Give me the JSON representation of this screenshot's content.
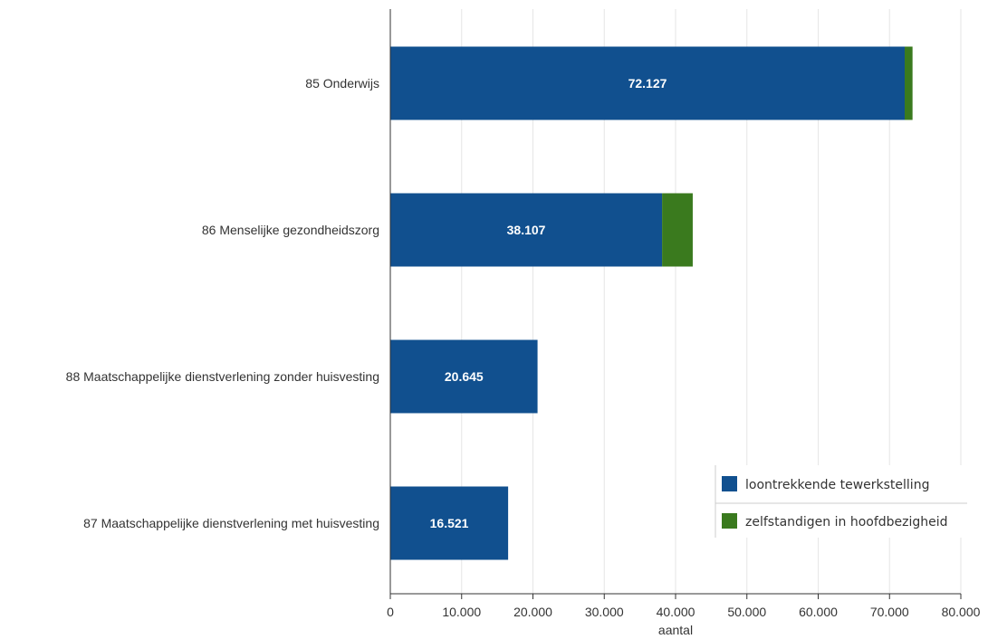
{
  "chart_data": {
    "type": "bar",
    "orientation": "horizontal",
    "stacked": true,
    "categories": [
      "85 Onderwijs",
      "86 Menselijke gezondheidszorg",
      "88 Maatschappelijke dienstverlening zonder huisvesting",
      "87 Maatschappelijke dienstverlening met huisvesting"
    ],
    "series": [
      {
        "name": "loontrekkende tewerkstelling",
        "color": "#11508f",
        "values": [
          72127,
          38107,
          20645,
          16521
        ],
        "labels": [
          "72.127",
          "38.107",
          "20.645",
          "16.521"
        ]
      },
      {
        "name": "zelfstandigen in hoofdbezigheid",
        "color": "#3a7a1e",
        "values": [
          1100,
          4300,
          0,
          0
        ]
      }
    ],
    "xlabel": "aantal",
    "xlim": [
      0,
      80000
    ],
    "ticks": [
      0,
      10000,
      20000,
      30000,
      40000,
      50000,
      60000,
      70000,
      80000
    ],
    "tick_labels": [
      "0",
      "10.000",
      "20.000",
      "30.000",
      "40.000",
      "50.000",
      "60.000",
      "70.000",
      "80.000"
    ],
    "grid": "vertical",
    "legend_position": "bottom-right"
  }
}
